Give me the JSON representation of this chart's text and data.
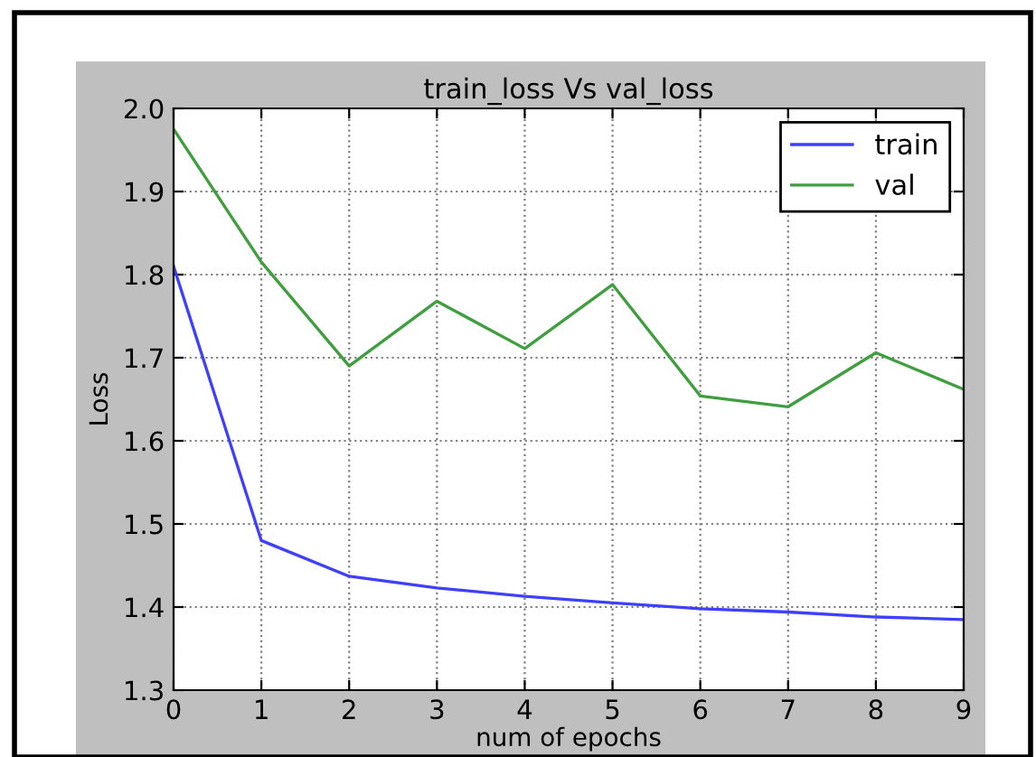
{
  "chart_data": {
    "type": "line",
    "title": "train_loss Vs val_loss",
    "xlabel": "num of epochs",
    "ylabel": "Loss",
    "x": [
      0,
      1,
      2,
      3,
      4,
      5,
      6,
      7,
      8,
      9
    ],
    "series": [
      {
        "name": "train",
        "color": "#3f3fff",
        "values": [
          1.81,
          1.48,
          1.437,
          1.423,
          1.413,
          1.405,
          1.398,
          1.394,
          1.388,
          1.385
        ]
      },
      {
        "name": "val",
        "color": "#3f9f3f",
        "values": [
          1.975,
          1.815,
          1.69,
          1.768,
          1.711,
          1.788,
          1.654,
          1.641,
          1.706,
          1.662
        ]
      }
    ],
    "xlim": [
      0,
      9
    ],
    "xticks": [
      0,
      1,
      2,
      3,
      4,
      5,
      6,
      7,
      8,
      9
    ],
    "ylim": [
      1.3,
      2.0
    ],
    "yticks": [
      {
        "value": 1.3,
        "label": "1.3"
      },
      {
        "value": 1.4,
        "label": "1.4"
      },
      {
        "value": 1.5,
        "label": "1.5"
      },
      {
        "value": 1.6,
        "label": "1.6"
      },
      {
        "value": 1.7,
        "label": "1.7"
      },
      {
        "value": 1.8,
        "label": "1.8"
      },
      {
        "value": 1.9,
        "label": "1.9"
      },
      {
        "value": 2.0,
        "label": "2.0"
      }
    ],
    "grid": true,
    "legend": "top right",
    "line_style": "solid",
    "marker": "none"
  }
}
